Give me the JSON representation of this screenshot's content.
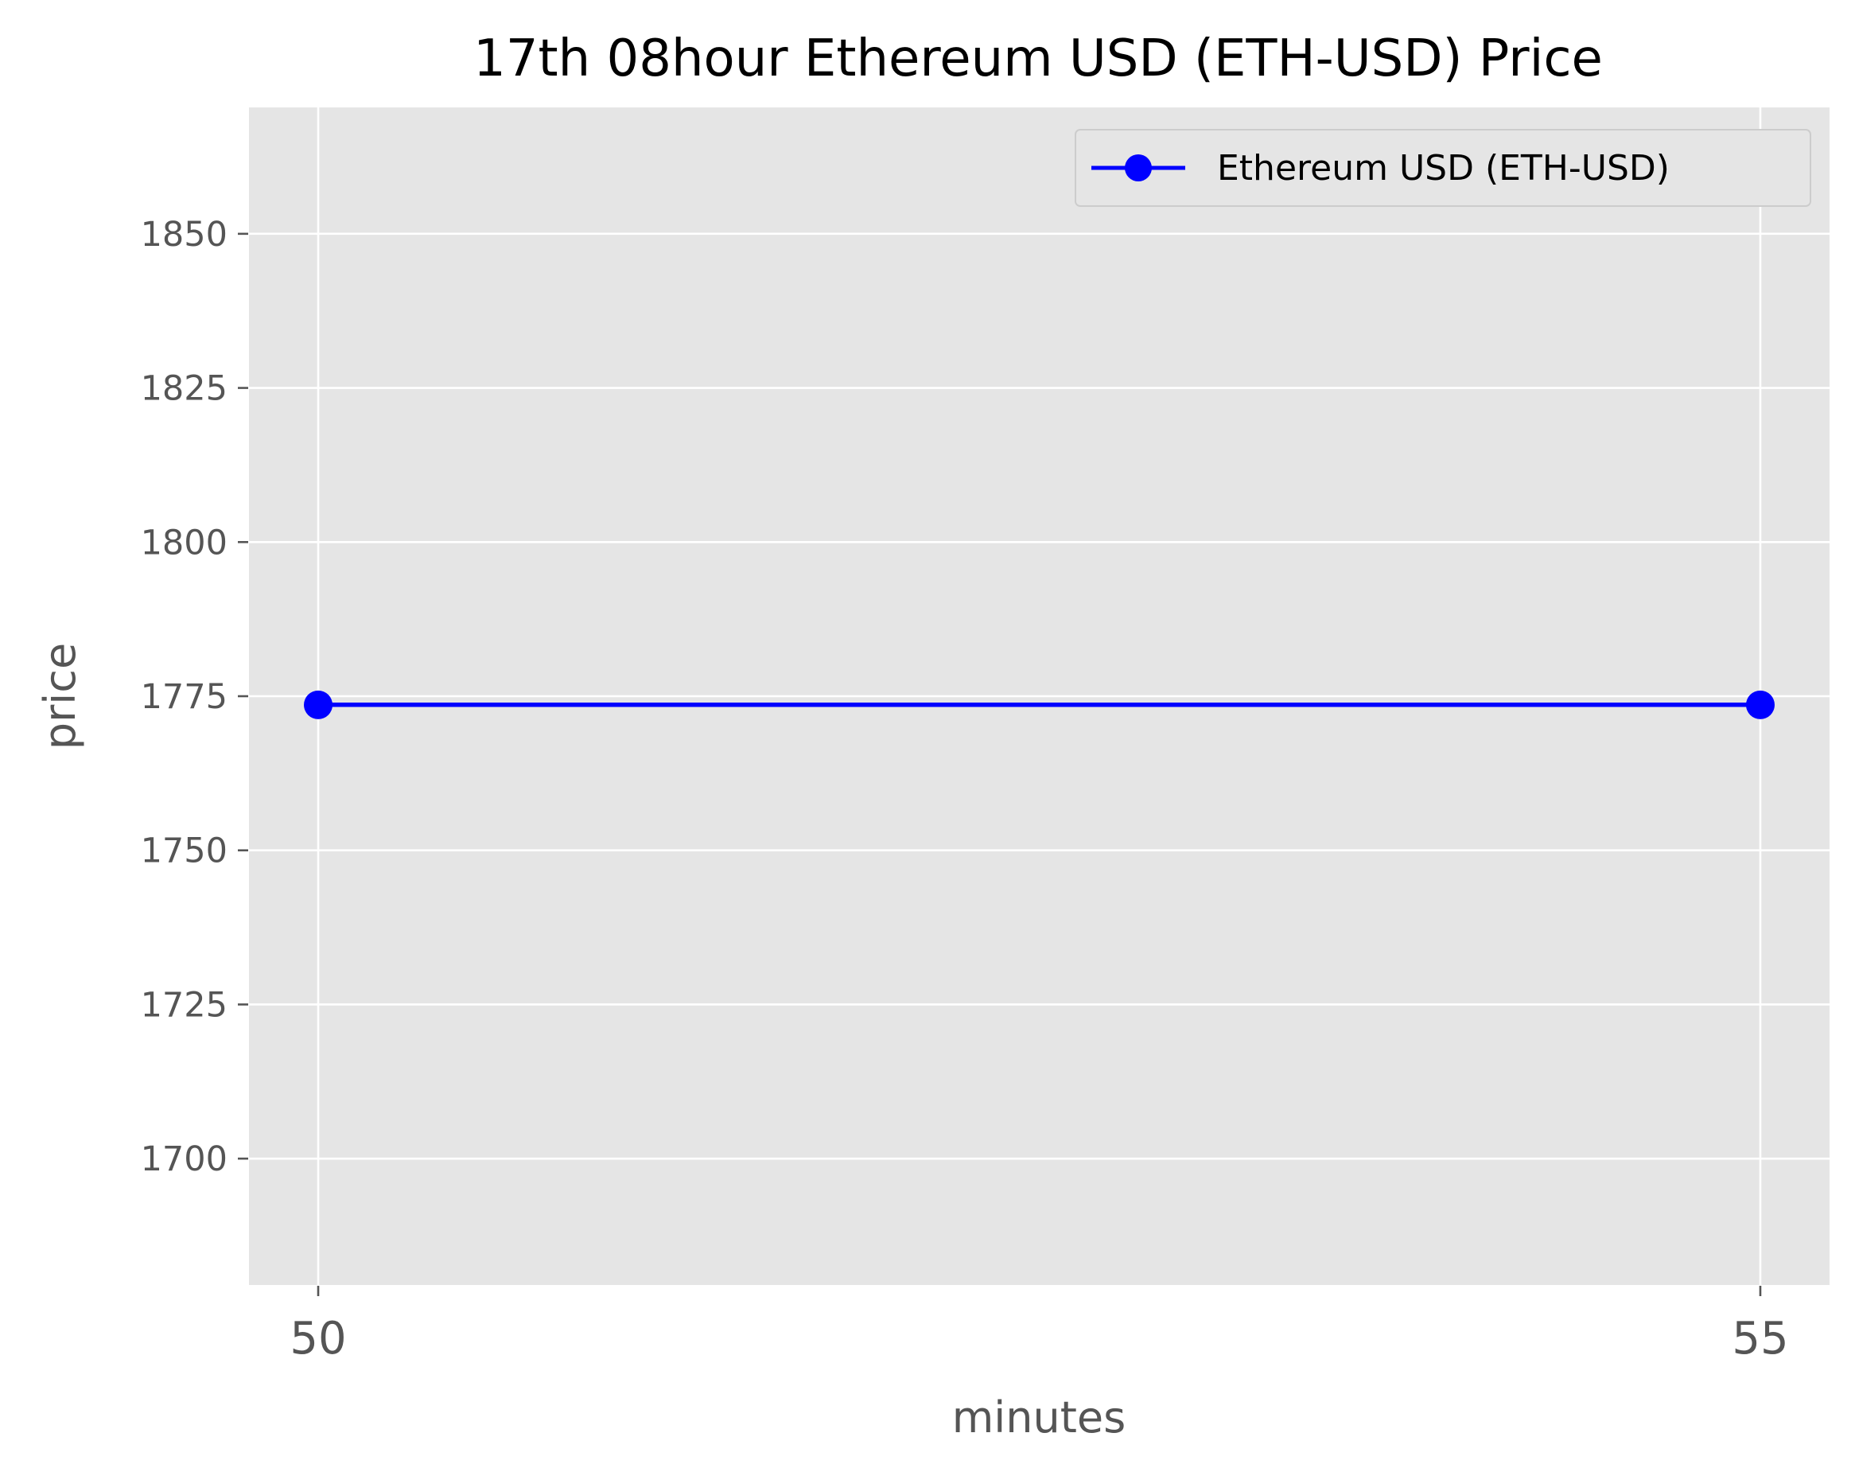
{
  "chart_data": {
    "type": "line",
    "title": "17th 08hour Ethereum USD (ETH-USD) Price",
    "xlabel": "minutes",
    "ylabel": "price",
    "x": [
      50,
      55
    ],
    "xticks": [
      "50",
      "55"
    ],
    "yticks": [
      "1700",
      "1725",
      "1750",
      "1775",
      "1800",
      "1825",
      "1850"
    ],
    "ytick_values": [
      1700,
      1725,
      1750,
      1775,
      1800,
      1825,
      1850
    ],
    "xlim": [
      49.76,
      55.24
    ],
    "ylim": [
      1679.5,
      1870.5
    ],
    "series": [
      {
        "name": "Ethereum USD (ETH-USD)",
        "values": [
          1773.6,
          1773.6
        ],
        "color": "#0000ff",
        "marker": "circle"
      }
    ],
    "grid": true,
    "legend_position": "top-right",
    "plot_background": "#e5e5e5",
    "grid_color": "#ffffff"
  }
}
